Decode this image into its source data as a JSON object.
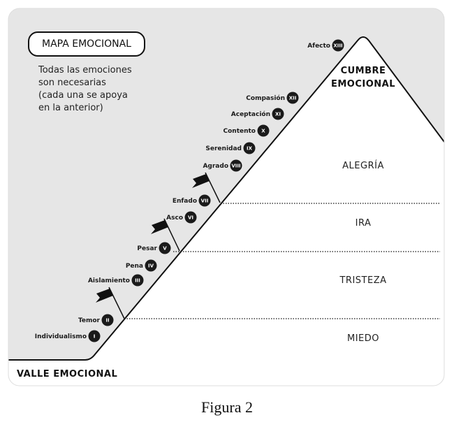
{
  "map_title": "MAPA EMOCIONAL",
  "description": [
    "Todas las emociones",
    "son necesarias",
    "(cada una se apoya",
    "en la anterior)"
  ],
  "valley_label": "VALLE EMOCIONAL",
  "summit_label": [
    "CUMBRE",
    "EMOCIONAL"
  ],
  "layers": [
    "ALEGRÍA",
    "IRA",
    "TRISTEZA",
    "MIEDO"
  ],
  "emotions": [
    {
      "label": "Individualismo",
      "numeral": "I"
    },
    {
      "label": "Temor",
      "numeral": "II"
    },
    {
      "label": "Aislamiento",
      "numeral": "III"
    },
    {
      "label": "Pena",
      "numeral": "IV"
    },
    {
      "label": "Pesar",
      "numeral": "V"
    },
    {
      "label": "Asco",
      "numeral": "VI"
    },
    {
      "label": "Enfado",
      "numeral": "VII"
    },
    {
      "label": "Agrado",
      "numeral": "VIII"
    },
    {
      "label": "Serenidad",
      "numeral": "IX"
    },
    {
      "label": "Contento",
      "numeral": "X"
    },
    {
      "label": "Aceptación",
      "numeral": "XI"
    },
    {
      "label": "Compasión",
      "numeral": "XII"
    },
    {
      "label": "Afecto",
      "numeral": "XIII"
    }
  ],
  "caption": "Figura 2",
  "colors": {
    "background": "#e6e6e6",
    "ink": "#1a1a1a",
    "mountain": "#ffffff"
  }
}
